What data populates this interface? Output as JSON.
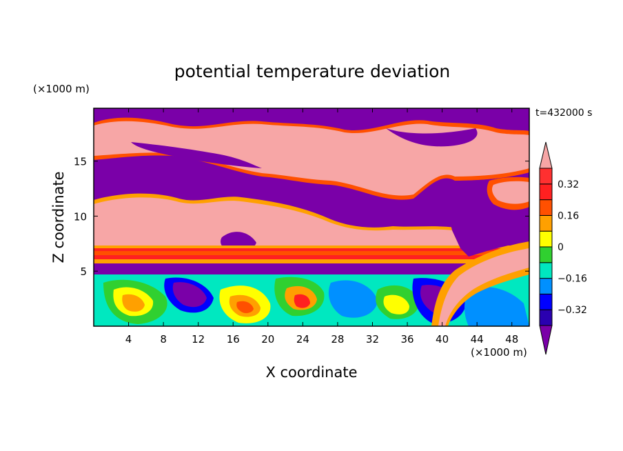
{
  "chart_data": {
    "type": "heatmap",
    "title": "potential temperature deviation",
    "xlabel": "X coordinate",
    "ylabel": "Z coordinate",
    "x_unit": "(×1000 m)",
    "y_unit": "(×1000 m)",
    "time_label": "t=432000 s",
    "xlim": [
      0,
      50
    ],
    "ylim": [
      0,
      19.8
    ],
    "x_ticks": [
      4,
      8,
      12,
      16,
      20,
      24,
      28,
      32,
      36,
      40,
      44,
      48
    ],
    "y_ticks": [
      5,
      10,
      15
    ],
    "colorbar": {
      "levels": [
        -0.4,
        -0.32,
        -0.24,
        -0.16,
        -0.08,
        0,
        0.08,
        0.16,
        0.24,
        0.32,
        0.4
      ],
      "colors": [
        "#7a00a8",
        "#2a00b0",
        "#0000ff",
        "#0090ff",
        "#00e8c0",
        "#30d030",
        "#ffff00",
        "#ffa000",
        "#ff5000",
        "#ff2020",
        "#ff3030",
        "#f7a6a6"
      ],
      "tick_labels": [
        "-0.32",
        "-0.16",
        "0",
        "0.16",
        "0.32"
      ],
      "extend": "both"
    },
    "bands": [
      {
        "z_range": [
          17.8,
          19.8
        ],
        "value": -0.5,
        "desc": "upper purple layer"
      },
      {
        "z_range": [
          15.2,
          17.8
        ],
        "value": 0.5,
        "desc": "upper warm band"
      },
      {
        "z_range": [
          12.0,
          15.2
        ],
        "value": -0.5,
        "desc": "purple middle band"
      },
      {
        "z_range": [
          7.2,
          12.0
        ],
        "value": 0.5,
        "desc": "warm band left"
      },
      {
        "z_range": [
          5.8,
          7.2
        ],
        "value": 0.3,
        "desc": "red inversion layer"
      },
      {
        "z_range": [
          0,
          5.8
        ],
        "value": 0.0,
        "desc": "turbulent boundary layer"
      }
    ]
  }
}
